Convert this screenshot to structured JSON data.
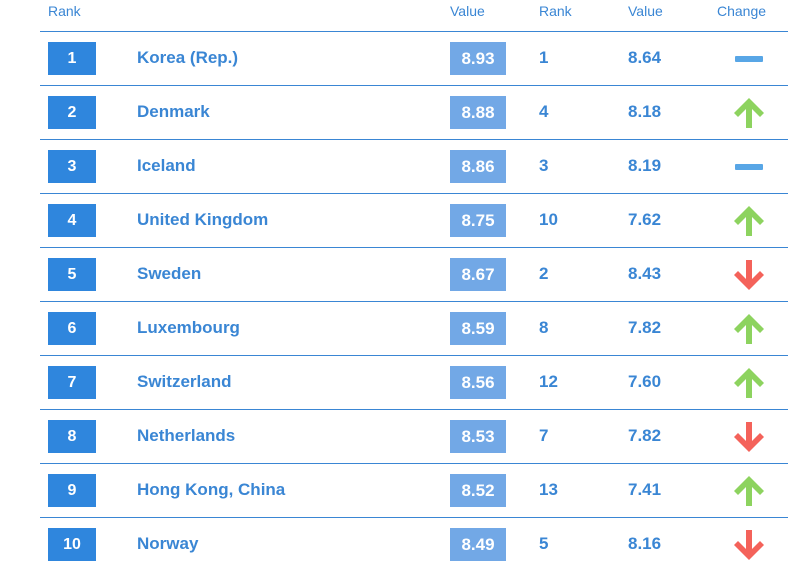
{
  "header": {
    "rank": "Rank",
    "value": "Value",
    "prev_rank": "Rank",
    "prev_value": "Value",
    "change": "Change"
  },
  "colors": {
    "accent": "#3a86d4",
    "rank_box": "#2f86dd",
    "value_box": "#72a8e6",
    "up": "#8dd35f",
    "down": "#f4625a",
    "same": "#58a6e6"
  },
  "rows": [
    {
      "rank": "1",
      "country": "Korea (Rep.)",
      "value": "8.93",
      "prev_rank": "1",
      "prev_value": "8.64",
      "change": "same"
    },
    {
      "rank": "2",
      "country": "Denmark",
      "value": "8.88",
      "prev_rank": "4",
      "prev_value": "8.18",
      "change": "up"
    },
    {
      "rank": "3",
      "country": "Iceland",
      "value": "8.86",
      "prev_rank": "3",
      "prev_value": "8.19",
      "change": "same"
    },
    {
      "rank": "4",
      "country": "United Kingdom",
      "value": "8.75",
      "prev_rank": "10",
      "prev_value": "7.62",
      "change": "up"
    },
    {
      "rank": "5",
      "country": "Sweden",
      "value": "8.67",
      "prev_rank": "2",
      "prev_value": "8.43",
      "change": "down"
    },
    {
      "rank": "6",
      "country": "Luxembourg",
      "value": "8.59",
      "prev_rank": "8",
      "prev_value": "7.82",
      "change": "up"
    },
    {
      "rank": "7",
      "country": "Switzerland",
      "value": "8.56",
      "prev_rank": "12",
      "prev_value": "7.60",
      "change": "up"
    },
    {
      "rank": "8",
      "country": "Netherlands",
      "value": "8.53",
      "prev_rank": "7",
      "prev_value": "7.82",
      "change": "down"
    },
    {
      "rank": "9",
      "country": "Hong Kong, China",
      "value": "8.52",
      "prev_rank": "13",
      "prev_value": "7.41",
      "change": "up"
    },
    {
      "rank": "10",
      "country": "Norway",
      "value": "8.49",
      "prev_rank": "5",
      "prev_value": "8.16",
      "change": "down"
    }
  ]
}
